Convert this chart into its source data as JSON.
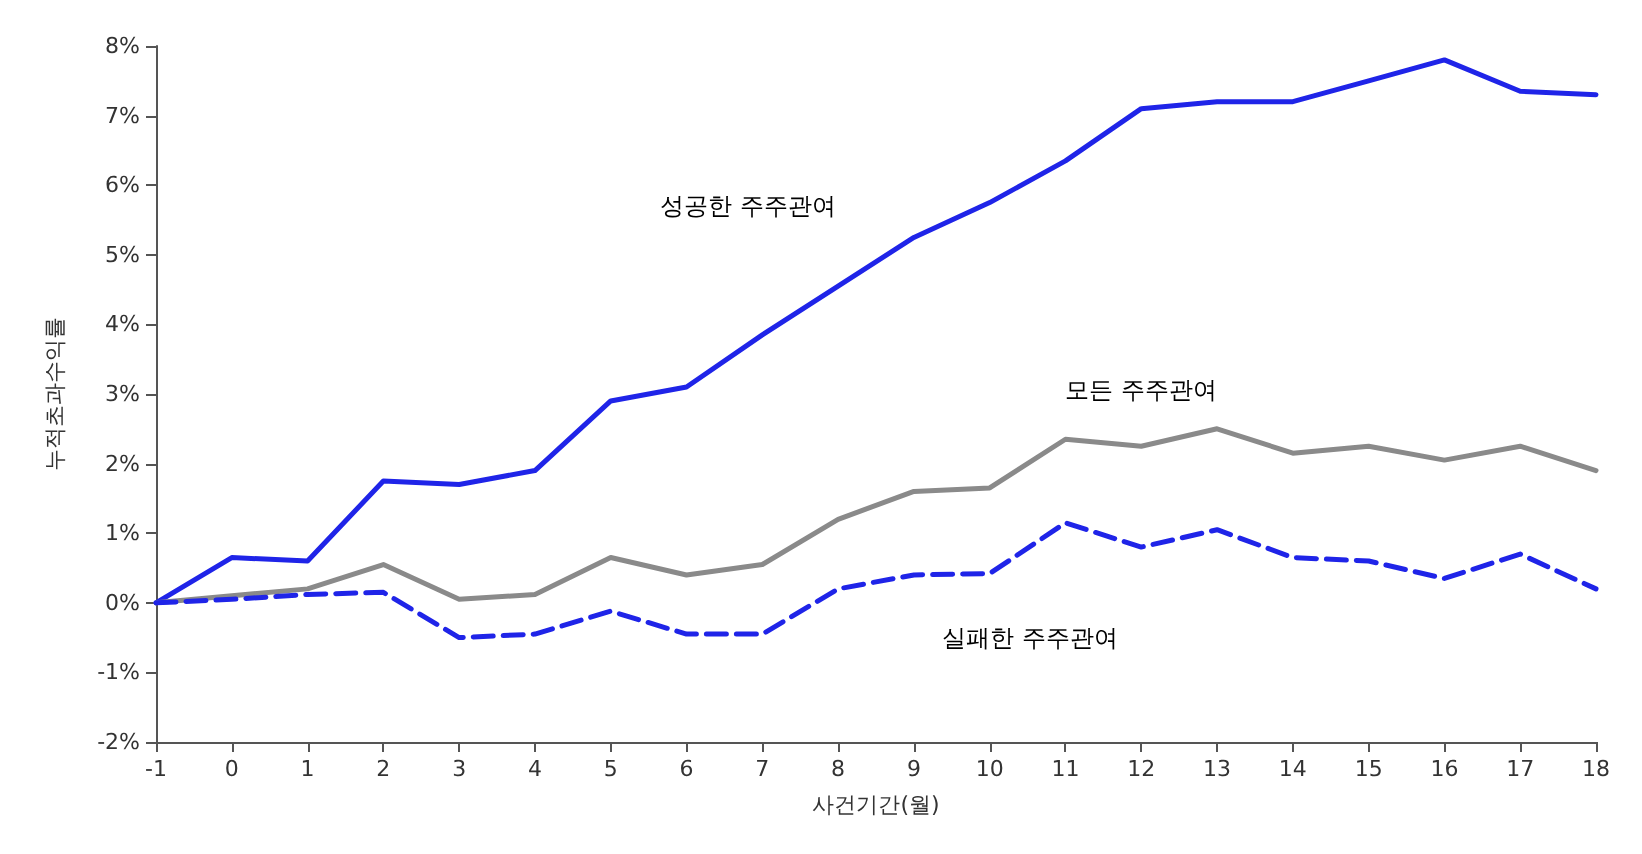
{
  "chart_data": {
    "type": "line",
    "xlabel": "사건기간(월)",
    "ylabel": "누적초과수익률",
    "x": [
      -1,
      0,
      1,
      2,
      3,
      4,
      5,
      6,
      7,
      8,
      9,
      10,
      11,
      12,
      13,
      14,
      15,
      16,
      17,
      18
    ],
    "series": [
      {
        "name": "성공한 주주관여",
        "color": "#1f24e8",
        "line_style": "solid",
        "values": [
          0,
          0.65,
          0.6,
          1.75,
          1.7,
          1.9,
          2.9,
          3.1,
          3.85,
          4.55,
          5.25,
          5.75,
          6.35,
          7.1,
          7.2,
          7.2,
          7.5,
          7.8,
          7.35,
          7.3
        ]
      },
      {
        "name": "모든 주주관여",
        "color": "#8a8a8a",
        "line_style": "solid",
        "values": [
          0,
          0.1,
          0.2,
          0.55,
          0.05,
          0.12,
          0.65,
          0.4,
          0.55,
          1.2,
          1.6,
          1.65,
          2.35,
          2.25,
          2.5,
          2.15,
          2.25,
          2.05,
          2.25,
          1.9
        ]
      },
      {
        "name": "실패한 주주관여",
        "color": "#1f24e8",
        "line_style": "dashed",
        "values": [
          0,
          0.05,
          0.12,
          0.15,
          -0.5,
          -0.45,
          -0.12,
          -0.45,
          -0.45,
          0.2,
          0.4,
          0.42,
          1.15,
          0.8,
          1.05,
          0.65,
          0.6,
          0.35,
          0.7,
          0.2
        ]
      }
    ],
    "xlim": [
      -1,
      18
    ],
    "xticks": [
      -1,
      0,
      1,
      2,
      3,
      4,
      5,
      6,
      7,
      8,
      9,
      10,
      11,
      12,
      13,
      14,
      15,
      16,
      17,
      18
    ],
    "ylim": [
      -2,
      8
    ],
    "yticks": [
      {
        "value": -2,
        "label": "-2%"
      },
      {
        "value": -1,
        "label": "-1%"
      },
      {
        "value": 0,
        "label": "0%"
      },
      {
        "value": 1,
        "label": "1%"
      },
      {
        "value": 2,
        "label": "2%"
      },
      {
        "value": 3,
        "label": "3%"
      },
      {
        "value": 4,
        "label": "4%"
      },
      {
        "value": 5,
        "label": "5%"
      },
      {
        "value": 6,
        "label": "6%"
      },
      {
        "value": 7,
        "label": "7%"
      },
      {
        "value": 8,
        "label": "8%"
      }
    ],
    "grid": false,
    "legend": false,
    "marker": "none"
  }
}
